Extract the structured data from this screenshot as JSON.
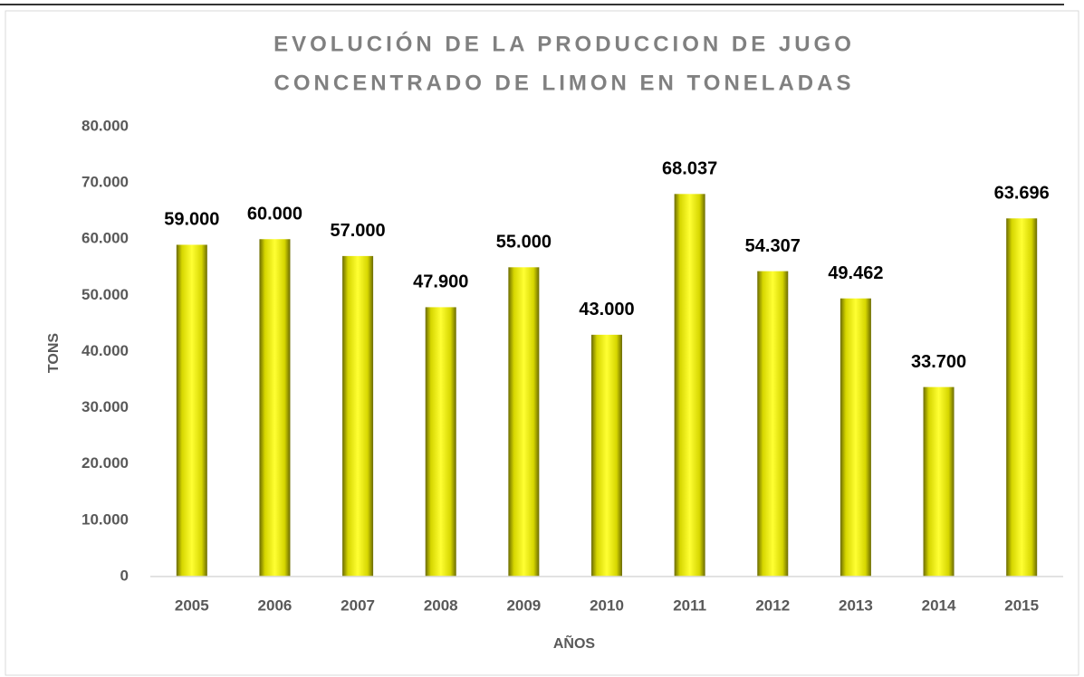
{
  "chart_data": {
    "type": "bar",
    "title": [
      "EVOLUCIÓN DE LA PRODUCCION DE JUGO",
      "CONCENTRADO  DE LIMON EN TONELADAS"
    ],
    "x_label": "AÑOS",
    "y_label": "TONS",
    "categories": [
      "2005",
      "2006",
      "2007",
      "2008",
      "2009",
      "2010",
      "2011",
      "2012",
      "2013",
      "2014",
      "2015"
    ],
    "values": [
      59000,
      60000,
      57000,
      47900,
      55000,
      43000,
      68037,
      54307,
      49462,
      33700,
      63696
    ],
    "value_labels": [
      "59.000",
      "60.000",
      "57.000",
      "47.900",
      "55.000",
      "43.000",
      "68.037",
      "54.307",
      "49.462",
      "33.700",
      "63.696"
    ],
    "color": "#ffff00",
    "ylim": [
      0,
      80000
    ],
    "yticks": [
      0,
      {
        "value": 10000,
        "label": "10.000"
      },
      {
        "value": 20000,
        "label": "20.000"
      },
      {
        "value": 30000,
        "label": "30.000"
      },
      {
        "value": 40000,
        "label": "40.000"
      },
      {
        "value": 50000,
        "label": "50.000"
      },
      {
        "value": 60000,
        "label": "60.000"
      },
      {
        "value": 70000,
        "label": "70.000"
      },
      {
        "value": 80000,
        "label": "80.000"
      }
    ],
    "grid": false
  }
}
